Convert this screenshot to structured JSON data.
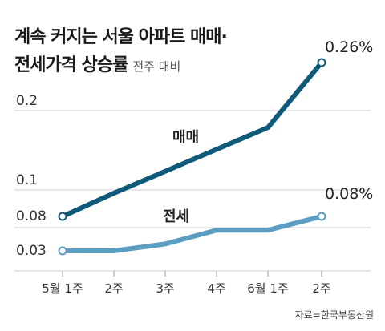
{
  "header": {
    "title_line1": "계속 커지는 서울 아파트 매매·",
    "title_line2": "전세가격 상승률",
    "subtitle": "전주 대비"
  },
  "source": "자료=한국부동산원",
  "chart_data": {
    "type": "line",
    "title": "계속 커지는 서울 아파트 매매·전세가격 상승률",
    "subtitle": "전주 대비",
    "categories": [
      "5월 1주",
      "2주",
      "3주",
      "4주",
      "6월 1주",
      "2주"
    ],
    "series": [
      {
        "name": "매매",
        "values": [
          0.08,
          0.1,
          0.13,
          0.16,
          0.19,
          0.26
        ],
        "color": "#0f5a78"
      },
      {
        "name": "전세",
        "values": [
          0.03,
          0.03,
          0.04,
          0.06,
          0.06,
          0.08
        ],
        "color": "#5b9ec1"
      }
    ],
    "yticks": [
      0.03,
      0.08,
      0.1,
      0.2
    ],
    "ytick_labels": [
      "0.03",
      "0.08",
      "0.1",
      "0.2"
    ],
    "ylim": [
      0.03,
      0.28
    ],
    "grid": "horizontal",
    "annotations": [
      "0.26%",
      "0.08%"
    ],
    "xlabel": "",
    "ylabel": ""
  }
}
